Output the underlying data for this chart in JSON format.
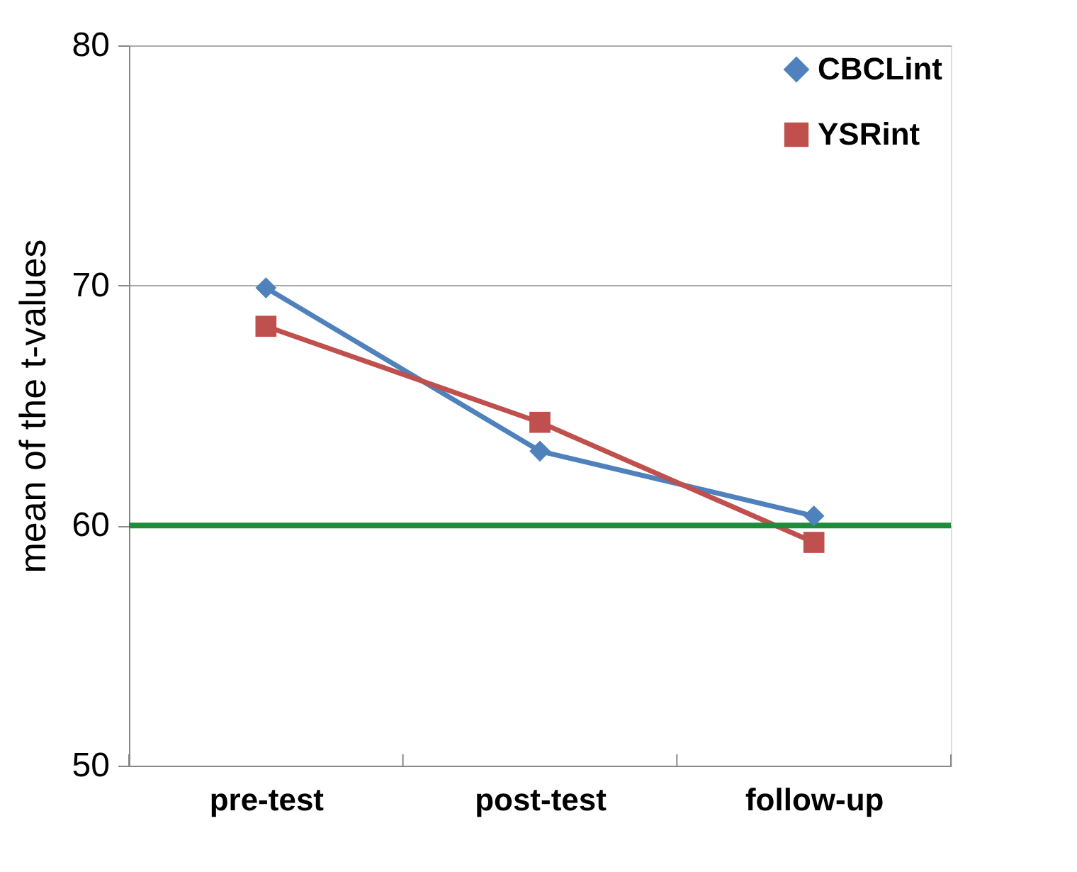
{
  "chart_data": {
    "type": "line",
    "ylabel": "mean of the t-values",
    "categories": [
      "pre-test",
      "post-test",
      "follow-up"
    ],
    "series": [
      {
        "name": "CBCLint",
        "color": "#4f81bd",
        "marker": "diamond",
        "values": [
          69.9,
          63.1,
          60.4
        ]
      },
      {
        "name": "YSRint",
        "color": "#c0504d",
        "marker": "square",
        "values": [
          68.3,
          64.3,
          59.3
        ]
      }
    ],
    "ylim": [
      50,
      80
    ],
    "yticks": [
      50,
      60,
      70,
      80
    ],
    "grid": "y",
    "legend": "top right",
    "line_style": "solid",
    "ref_lines": [
      {
        "axis": "y",
        "value": 60,
        "label": null,
        "color": "#1e8c3a"
      }
    ]
  }
}
